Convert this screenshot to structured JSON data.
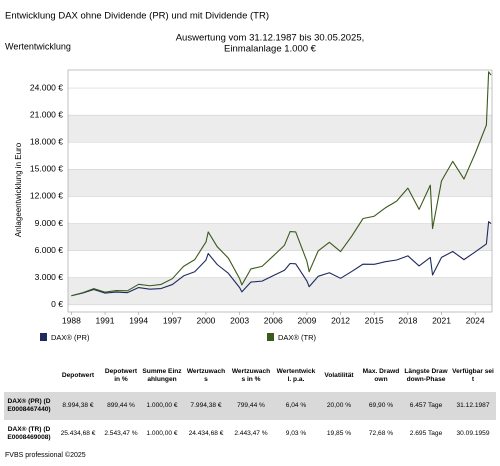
{
  "header": {
    "title": "Entwicklung DAX ohne Dividende (PR) und mit Dividende (TR)",
    "subtitle": "Wertentwicklung"
  },
  "chart_data": {
    "type": "line",
    "title": [
      "Auswertung vom 31.12.1987 bis 30.05.2025,",
      "Einmalanlage 1.000 €"
    ],
    "ylabel": "Anlageentwicklung in Euro",
    "x": [
      1988.0,
      1989.0,
      1990.0,
      1991.0,
      1992.0,
      1993.0,
      1994.0,
      1995.0,
      1996.0,
      1997.0,
      1998.0,
      1999.0,
      2000.0,
      2000.2,
      2001.0,
      2002.0,
      2003.0,
      2003.2,
      2004.0,
      2005.0,
      2006.0,
      2007.0,
      2007.5,
      2008.0,
      2009.0,
      2009.2,
      2010.0,
      2011.0,
      2012.0,
      2013.0,
      2014.0,
      2015.0,
      2016.0,
      2017.0,
      2018.0,
      2019.0,
      2020.0,
      2020.2,
      2021.0,
      2022.0,
      2023.0,
      2024.0,
      2025.0,
      2025.2,
      2025.41
    ],
    "xlim": [
      1987.7,
      2025.5
    ],
    "xticks": [
      1988,
      1991,
      1994,
      1997,
      2000,
      2003,
      2006,
      2009,
      2012,
      2015,
      2018,
      2021,
      2024
    ],
    "ylim": [
      -800,
      26000
    ],
    "yticks": [
      {
        "value": 0,
        "label": "0 €"
      },
      {
        "value": 3000,
        "label": "3.000 €"
      },
      {
        "value": 6000,
        "label": "6.000 €"
      },
      {
        "value": 9000,
        "label": "9.000 €"
      },
      {
        "value": 12000,
        "label": "12.000 €"
      },
      {
        "value": 15000,
        "label": "15.000 €"
      },
      {
        "value": 18000,
        "label": "18.000 €"
      },
      {
        "value": 21000,
        "label": "21.000 €"
      },
      {
        "value": 24000,
        "label": "24.000 €"
      }
    ],
    "grid": true,
    "series": [
      {
        "name": "DAX® (PR)",
        "color": "#1f2a5e",
        "values": [
          1000,
          1300,
          1700,
          1290,
          1410,
          1340,
          1910,
          1730,
          1800,
          2240,
          3200,
          3660,
          4950,
          5680,
          4460,
          3480,
          1900,
          1430,
          2510,
          2620,
          3230,
          3820,
          4570,
          4540,
          2630,
          2000,
          3150,
          3550,
          2930,
          3690,
          4500,
          4480,
          4770,
          4960,
          5420,
          4300,
          5240,
          3300,
          5250,
          5900,
          5000,
          5850,
          6740,
          9200,
          8994.38
        ]
      },
      {
        "name": "DAX® (TR)",
        "color": "#3b5a1c",
        "values": [
          1000,
          1328,
          1790,
          1398,
          1578,
          1545,
          2267,
          2107,
          2254,
          2889,
          4250,
          5002,
          6958,
          8065,
          6434,
          5160,
          2893,
          2203,
          3965,
          4256,
          5408,
          6597,
          8105,
          8067,
          4810,
          3666,
          5957,
          6914,
          5898,
          7612,
          9552,
          9806,
          10743,
          11481,
          12918,
          10559,
          13249,
          8441,
          13719,
          15885,
          13924,
          16752,
          19909,
          25800,
          25434.68
        ]
      }
    ]
  },
  "table": {
    "columns": [
      "",
      "Depotwert",
      "Depotwert in %",
      "Summe Einzahlungen",
      "Wertzuwachs",
      "Wertzuwachs in %",
      "Wertentwickl. p.a.",
      "Volatilität",
      "Max. Drawdown",
      "Längste Drawdown-Phase",
      "Verfügbar seit"
    ],
    "rows": [
      [
        "DAX® (PR) (DE0008467440)",
        "8.994,38 €",
        "899,44 %",
        "1.000,00 €",
        "7.994,38 €",
        "799,44 %",
        "6,04 %",
        "20,00 %",
        "69,90 %",
        "6.457 Tage",
        "31.12.1987"
      ],
      [
        "DAX® (TR) (DE0008469008)",
        "25.434,68 €",
        "2.543,47 %",
        "1.000,00 €",
        "24.434,68 €",
        "2.443,47 %",
        "9,03 %",
        "19,85 %",
        "72,68 %",
        "2.695 Tage",
        "30.09.1959"
      ]
    ]
  },
  "footer": "FVBS professional ©2025"
}
